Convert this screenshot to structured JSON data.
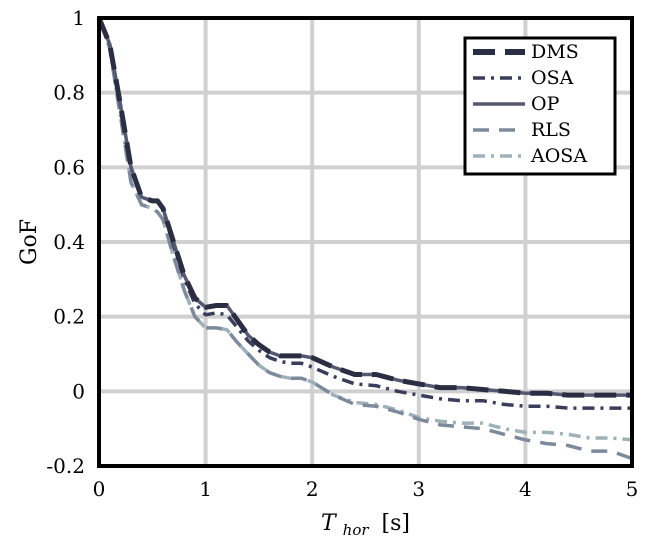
{
  "chart_data": {
    "type": "line",
    "xlabel_main": "T",
    "xlabel_sub": "hor",
    "xlabel_unit": "[s]",
    "ylabel": "GoF",
    "xlim": [
      0,
      5
    ],
    "ylim": [
      -0.2,
      1
    ],
    "xticks": [
      0,
      1,
      2,
      3,
      4,
      5
    ],
    "xtick_labels": [
      "0",
      "1",
      "2",
      "3",
      "4",
      "5"
    ],
    "yticks": [
      -0.2,
      0,
      0.2,
      0.4,
      0.6,
      0.8,
      1
    ],
    "ytick_labels": [
      "-0.2",
      "0",
      "0.2",
      "0.4",
      "0.6",
      "0.8",
      "1"
    ],
    "grid": true,
    "legend_position": "top-right",
    "series": [
      {
        "name": "DMS",
        "color": "#2b2d42",
        "style": "long-dash",
        "x": [
          0,
          0.1,
          0.2,
          0.3,
          0.4,
          0.5,
          0.55,
          0.6,
          0.7,
          0.8,
          0.9,
          1.0,
          1.1,
          1.2,
          1.3,
          1.4,
          1.5,
          1.6,
          1.7,
          1.8,
          1.9,
          2.0,
          2.2,
          2.4,
          2.6,
          2.8,
          3.0,
          3.2,
          3.4,
          3.6,
          3.8,
          4.0,
          4.2,
          4.4,
          4.6,
          4.8,
          5.0
        ],
        "y": [
          1.0,
          0.93,
          0.77,
          0.6,
          0.52,
          0.51,
          0.51,
          0.49,
          0.4,
          0.31,
          0.25,
          0.225,
          0.23,
          0.23,
          0.19,
          0.15,
          0.125,
          0.105,
          0.095,
          0.095,
          0.095,
          0.09,
          0.065,
          0.045,
          0.045,
          0.03,
          0.02,
          0.01,
          0.01,
          0.005,
          0.0,
          -0.005,
          -0.005,
          -0.01,
          -0.01,
          -0.01,
          -0.01
        ]
      },
      {
        "name": "OSA",
        "color": "#3b3d5c",
        "style": "dash-dot",
        "x": [
          0,
          0.1,
          0.2,
          0.3,
          0.4,
          0.5,
          0.55,
          0.6,
          0.7,
          0.8,
          0.9,
          1.0,
          1.1,
          1.2,
          1.3,
          1.4,
          1.5,
          1.6,
          1.7,
          1.8,
          1.9,
          2.0,
          2.2,
          2.4,
          2.6,
          2.8,
          3.0,
          3.2,
          3.4,
          3.6,
          3.8,
          4.0,
          4.2,
          4.4,
          4.6,
          4.8,
          5.0
        ],
        "y": [
          1.0,
          0.93,
          0.77,
          0.6,
          0.52,
          0.51,
          0.51,
          0.49,
          0.39,
          0.3,
          0.235,
          0.205,
          0.21,
          0.205,
          0.17,
          0.135,
          0.11,
          0.09,
          0.08,
          0.075,
          0.075,
          0.065,
          0.04,
          0.02,
          0.015,
          0.0,
          -0.01,
          -0.02,
          -0.025,
          -0.025,
          -0.035,
          -0.04,
          -0.04,
          -0.045,
          -0.045,
          -0.045,
          -0.045
        ]
      },
      {
        "name": "OP",
        "color": "#555870",
        "style": "solid",
        "x": [
          0,
          0.1,
          0.2,
          0.3,
          0.4,
          0.5,
          0.55,
          0.6,
          0.7,
          0.8,
          0.9,
          1.0,
          1.1,
          1.2,
          1.3,
          1.4,
          1.5,
          1.6,
          1.7,
          1.8,
          1.9,
          2.0,
          2.2,
          2.4,
          2.6,
          2.8,
          3.0,
          3.2,
          3.4,
          3.6,
          3.8,
          4.0,
          4.2,
          4.4,
          4.6,
          4.8,
          5.0
        ],
        "y": [
          1.0,
          0.93,
          0.77,
          0.6,
          0.52,
          0.51,
          0.51,
          0.49,
          0.4,
          0.31,
          0.25,
          0.225,
          0.23,
          0.23,
          0.19,
          0.15,
          0.125,
          0.105,
          0.095,
          0.095,
          0.095,
          0.09,
          0.065,
          0.045,
          0.045,
          0.03,
          0.02,
          0.01,
          0.01,
          0.005,
          0.0,
          -0.005,
          -0.005,
          -0.01,
          -0.01,
          -0.01,
          -0.01
        ]
      },
      {
        "name": "RLS",
        "color": "#7d8a9c",
        "style": "dash",
        "x": [
          0,
          0.1,
          0.2,
          0.3,
          0.4,
          0.5,
          0.55,
          0.6,
          0.7,
          0.8,
          0.9,
          1.0,
          1.1,
          1.2,
          1.3,
          1.4,
          1.5,
          1.6,
          1.7,
          1.8,
          1.9,
          2.0,
          2.2,
          2.4,
          2.6,
          2.8,
          3.0,
          3.2,
          3.4,
          3.6,
          3.8,
          4.0,
          4.2,
          4.4,
          4.6,
          4.8,
          5.0
        ],
        "y": [
          1.0,
          0.92,
          0.74,
          0.56,
          0.5,
          0.49,
          0.48,
          0.46,
          0.36,
          0.27,
          0.2,
          0.17,
          0.17,
          0.165,
          0.13,
          0.1,
          0.07,
          0.05,
          0.04,
          0.035,
          0.035,
          0.025,
          -0.01,
          -0.035,
          -0.04,
          -0.055,
          -0.075,
          -0.09,
          -0.095,
          -0.1,
          -0.115,
          -0.13,
          -0.14,
          -0.145,
          -0.16,
          -0.16,
          -0.18
        ]
      },
      {
        "name": "AOSA",
        "color": "#9fb1b8",
        "style": "dash-dot",
        "x": [
          0,
          0.1,
          0.2,
          0.3,
          0.4,
          0.5,
          0.55,
          0.6,
          0.7,
          0.8,
          0.9,
          1.0,
          1.1,
          1.2,
          1.3,
          1.4,
          1.5,
          1.6,
          1.7,
          1.8,
          1.9,
          2.0,
          2.2,
          2.4,
          2.6,
          2.8,
          3.0,
          3.2,
          3.4,
          3.6,
          3.8,
          4.0,
          4.2,
          4.4,
          4.6,
          4.8,
          5.0
        ],
        "y": [
          1.0,
          0.92,
          0.74,
          0.56,
          0.5,
          0.49,
          0.48,
          0.46,
          0.36,
          0.27,
          0.2,
          0.17,
          0.17,
          0.165,
          0.13,
          0.1,
          0.07,
          0.05,
          0.04,
          0.035,
          0.035,
          0.025,
          -0.01,
          -0.03,
          -0.035,
          -0.05,
          -0.07,
          -0.08,
          -0.085,
          -0.085,
          -0.1,
          -0.11,
          -0.11,
          -0.115,
          -0.125,
          -0.125,
          -0.13
        ]
      }
    ]
  }
}
